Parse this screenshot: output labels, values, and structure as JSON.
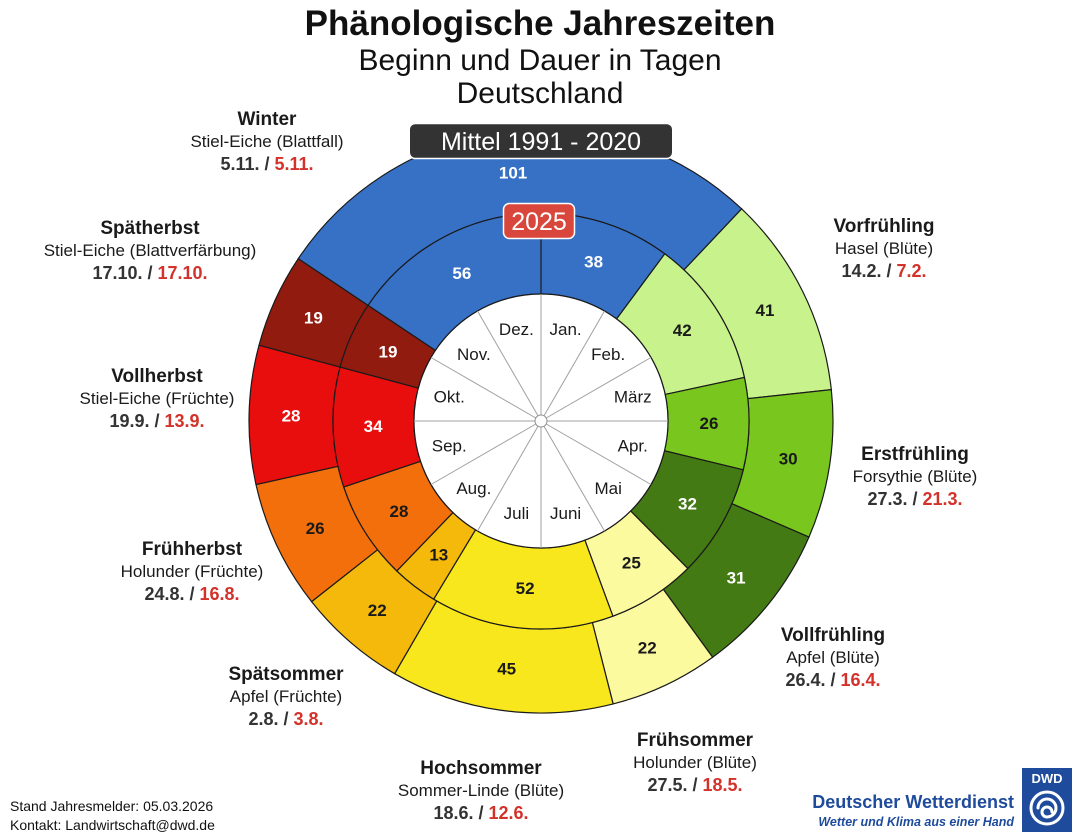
{
  "header": {
    "title": "Phänologische Jahreszeiten",
    "subtitle1": "Beginn und Dauer in Tagen",
    "subtitle2": "Deutschland"
  },
  "chart_data": {
    "type": "donut",
    "outer_ring_label": "Mittel 1991 - 2020",
    "inner_ring_label": "2025",
    "months": [
      "Jan.",
      "Feb.",
      "März",
      "Apr.",
      "Mai",
      "Juni",
      "Juli",
      "Aug.",
      "Sep.",
      "Okt.",
      "Nov.",
      "Dez."
    ],
    "seasons": [
      {
        "name": "Vorfrühling",
        "plant": "Hasel (Blüte)",
        "date_mean": "14.2.",
        "date_2025": "7.2.",
        "days_mean": 41,
        "days_2025": 42,
        "color": "#c8f38c"
      },
      {
        "name": "Erstfrühling",
        "plant": "Forsythie (Blüte)",
        "date_mean": "27.3.",
        "date_2025": "21.3.",
        "days_mean": 30,
        "days_2025": 26,
        "color": "#78c61e"
      },
      {
        "name": "Vollfrühling",
        "plant": "Apfel (Blüte)",
        "date_mean": "26.4.",
        "date_2025": "16.4.",
        "days_mean": 31,
        "days_2025": 32,
        "color": "#447a14"
      },
      {
        "name": "Frühsommer",
        "plant": "Holunder (Blüte)",
        "date_mean": "27.5.",
        "date_2025": "18.5.",
        "days_mean": 22,
        "days_2025": 25,
        "color": "#fbfa9e"
      },
      {
        "name": "Hochsommer",
        "plant": "Sommer-Linde (Blüte)",
        "date_mean": "18.6.",
        "date_2025": "12.6.",
        "days_mean": 45,
        "days_2025": 52,
        "color": "#f8e71c"
      },
      {
        "name": "Spätsommer",
        "plant": "Apfel (Früchte)",
        "date_mean": "2.8.",
        "date_2025": "3.8.",
        "days_mean": 22,
        "days_2025": 13,
        "color": "#f5b90b"
      },
      {
        "name": "Frühherbst",
        "plant": "Holunder (Früchte)",
        "date_mean": "24.8.",
        "date_2025": "16.8.",
        "days_mean": 26,
        "days_2025": 28,
        "color": "#f36f0c"
      },
      {
        "name": "Vollherbst",
        "plant": "Stiel-Eiche (Früchte)",
        "date_mean": "19.9.",
        "date_2025": "13.9.",
        "days_mean": 28,
        "days_2025": 34,
        "color": "#e80e0e"
      },
      {
        "name": "Spätherbst",
        "plant": "Stiel-Eiche (Blattverfärbung)",
        "date_mean": "17.10.",
        "date_2025": "17.10.",
        "days_mean": 19,
        "days_2025": 19,
        "color": "#921b10"
      },
      {
        "name": "Winter",
        "plant": "Stiel-Eiche (Blattfall)",
        "date_mean": "5.11.",
        "date_2025": "5.11.",
        "days_mean": 101,
        "days_2025": 94,
        "days_2025_display": [
          "56",
          "38"
        ],
        "color": "#3771c6"
      }
    ]
  },
  "footer": {
    "status": "Stand Jahresmelder: 05.03.2026",
    "contact": "Kontakt: Landwirtschaft@dwd.de"
  },
  "brand": {
    "name": "Deutscher Wetterdienst",
    "slogan": "Wetter und Klima aus einer Hand",
    "logo_text": "DWD"
  }
}
